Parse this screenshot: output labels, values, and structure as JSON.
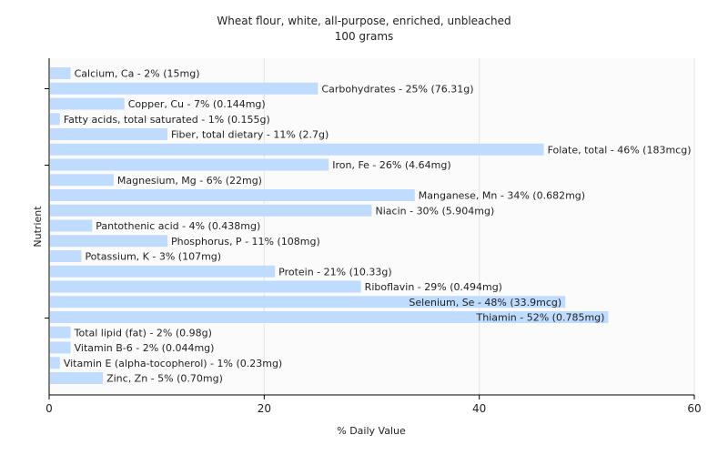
{
  "chart_data": {
    "type": "bar",
    "orientation": "horizontal",
    "title": "Wheat flour, white, all-purpose, enriched, unbleached",
    "subtitle": "100 grams",
    "xlabel": "% Daily Value",
    "ylabel": "Nutrient",
    "xlim": [
      0,
      60
    ],
    "xticks": [
      0,
      20,
      40,
      60
    ],
    "grid": true,
    "bar_color": "#bfdcff",
    "categories": [
      "Calcium, Ca - 2% (15mg)",
      "Carbohydrates - 25% (76.31g)",
      "Copper, Cu - 7% (0.144mg)",
      "Fatty acids, total saturated - 1% (0.155g)",
      "Fiber, total dietary - 11% (2.7g)",
      "Folate, total - 46% (183mcg)",
      "Iron, Fe - 26% (4.64mg)",
      "Magnesium, Mg - 6% (22mg)",
      "Manganese, Mn - 34% (0.682mg)",
      "Niacin - 30% (5.904mg)",
      "Pantothenic acid - 4% (0.438mg)",
      "Phosphorus, P - 11% (108mg)",
      "Potassium, K - 3% (107mg)",
      "Protein - 21% (10.33g)",
      "Riboflavin - 29% (0.494mg)",
      "Selenium, Se - 48% (33.9mcg)",
      "Thiamin - 52% (0.785mg)",
      "Total lipid (fat) - 2% (0.98g)",
      "Vitamin B-6 - 2% (0.044mg)",
      "Vitamin E (alpha-tocopherol) - 1% (0.23mg)",
      "Zinc, Zn - 5% (0.70mg)"
    ],
    "values": [
      2,
      25,
      7,
      1,
      11,
      46,
      26,
      6,
      34,
      30,
      4,
      11,
      3,
      21,
      29,
      48,
      52,
      2,
      2,
      1,
      5
    ]
  }
}
